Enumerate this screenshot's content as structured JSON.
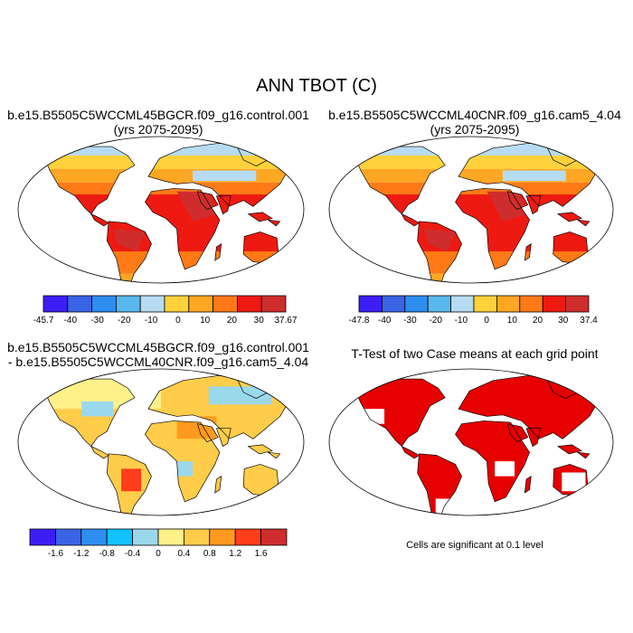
{
  "figure": {
    "title": "ANN TBOT (C)"
  },
  "panels": [
    {
      "id": "case1",
      "title_lines": [
        "b.e15.B5505C5WCCML45BGCR.f09_g16.control.001",
        "(yrs 2075-2095)"
      ]
    },
    {
      "id": "case2",
      "title_lines": [
        "b.e15.B5505C5WCCML40CNR.f09_g16.cam5_4.04",
        "(yrs 2075-2095)"
      ]
    },
    {
      "id": "diff",
      "title_lines": [
        "b.e15.B5505C5WCCML45BGCR.f09_g16.control.001",
        "- b.e15.B5505C5WCCML40CNR.f09_g16.cam5_4.04"
      ]
    },
    {
      "id": "ttest",
      "title_lines": [
        "T-Test of two Case means at each grid point"
      ]
    }
  ],
  "colorbars": [
    {
      "labels": [
        "-45.7",
        "-40",
        "-30",
        "-20",
        "-10",
        "0",
        "10",
        "20",
        "30",
        "37.67"
      ],
      "colors": [
        "#3c1ef5",
        "#3a63e6",
        "#2d8ef0",
        "#5ab8ee",
        "#b7dcf2",
        "#ffd23c",
        "#ffa722",
        "#ff7a16",
        "#ee1a12",
        "#cf2d2d"
      ]
    },
    {
      "labels": [
        "-47.8",
        "-40",
        "-30",
        "-20",
        "-10",
        "0",
        "10",
        "20",
        "30",
        "37.4"
      ],
      "colors": [
        "#3c1ef5",
        "#3a63e6",
        "#2d8ef0",
        "#5ab8ee",
        "#b7dcf2",
        "#ffd23c",
        "#ffa722",
        "#ff7a16",
        "#ee1a12",
        "#cf2d2d"
      ]
    },
    {
      "labels": [
        "-1.6",
        "-1.2",
        "-0.8",
        "-0.4",
        "0",
        "0.4",
        "0.8",
        "1.2",
        "1.6"
      ],
      "colors": [
        "#3c1ef5",
        "#3a63e6",
        "#2d8ef0",
        "#11c2ff",
        "#9ad8ec",
        "#fff08a",
        "#ffcd4a",
        "#ff9a1e",
        "#ff3d1a",
        "#cf2d2d"
      ]
    }
  ],
  "ttest_note": "Cells are significant at 0.1 level",
  "colors": {
    "ocean": "#ffffff",
    "outline": "#000000",
    "significant": "#e60000"
  }
}
